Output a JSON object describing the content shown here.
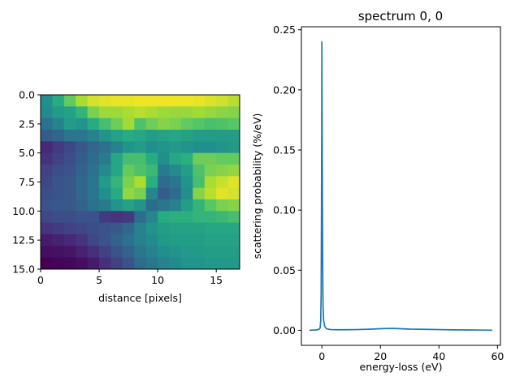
{
  "chart_data": [
    {
      "type": "heatmap",
      "title": "",
      "xlabel": "distance [pixels]",
      "ylabel": "",
      "colormap": "viridis",
      "xlim": [
        0,
        17
      ],
      "ylim": [
        15,
        0
      ],
      "x_ticks": [
        0,
        5,
        10,
        15
      ],
      "x_tick_labels": [
        "0",
        "5",
        "10",
        "15"
      ],
      "y_ticks": [
        0.0,
        2.5,
        5.0,
        7.5,
        10.0,
        12.5,
        15.0
      ],
      "y_tick_labels": [
        "0.0",
        "2.5",
        "5.0",
        "7.5",
        "10.0",
        "12.5",
        "15.0"
      ],
      "value_range": [
        0,
        1
      ],
      "values": [
        [
          0.5,
          0.62,
          0.76,
          0.88,
          0.94,
          0.96,
          0.97,
          0.97,
          0.98,
          0.98,
          0.98,
          0.98,
          0.98,
          0.97,
          0.95,
          0.93,
          0.9
        ],
        [
          0.48,
          0.55,
          0.58,
          0.66,
          0.8,
          0.86,
          0.86,
          0.88,
          0.9,
          0.88,
          0.86,
          0.85,
          0.85,
          0.87,
          0.85,
          0.83,
          0.82
        ],
        [
          0.38,
          0.45,
          0.55,
          0.52,
          0.62,
          0.7,
          0.78,
          0.87,
          0.72,
          0.78,
          0.82,
          0.8,
          0.76,
          0.73,
          0.71,
          0.72,
          0.74
        ],
        [
          0.3,
          0.33,
          0.4,
          0.4,
          0.45,
          0.52,
          0.58,
          0.62,
          0.6,
          0.56,
          0.58,
          0.6,
          0.58,
          0.55,
          0.55,
          0.55,
          0.56
        ],
        [
          0.12,
          0.18,
          0.22,
          0.28,
          0.34,
          0.38,
          0.45,
          0.52,
          0.55,
          0.5,
          0.52,
          0.54,
          0.52,
          0.5,
          0.5,
          0.52,
          0.54
        ],
        [
          0.15,
          0.2,
          0.24,
          0.3,
          0.36,
          0.42,
          0.6,
          0.7,
          0.7,
          0.62,
          0.5,
          0.6,
          0.64,
          0.78,
          0.78,
          0.76,
          0.76
        ],
        [
          0.2,
          0.24,
          0.26,
          0.32,
          0.38,
          0.48,
          0.6,
          0.76,
          0.72,
          0.68,
          0.42,
          0.48,
          0.56,
          0.72,
          0.8,
          0.82,
          0.84
        ],
        [
          0.22,
          0.26,
          0.28,
          0.34,
          0.4,
          0.55,
          0.66,
          0.8,
          0.88,
          0.64,
          0.36,
          0.4,
          0.52,
          0.7,
          0.88,
          0.92,
          0.96
        ],
        [
          0.24,
          0.26,
          0.28,
          0.34,
          0.4,
          0.5,
          0.62,
          0.84,
          0.8,
          0.46,
          0.3,
          0.36,
          0.5,
          0.82,
          0.9,
          0.96,
          0.94
        ],
        [
          0.26,
          0.28,
          0.28,
          0.32,
          0.38,
          0.42,
          0.52,
          0.58,
          0.52,
          0.36,
          0.4,
          0.44,
          0.56,
          0.66,
          0.74,
          0.8,
          0.82
        ],
        [
          0.22,
          0.24,
          0.24,
          0.26,
          0.26,
          0.18,
          0.16,
          0.18,
          0.36,
          0.46,
          0.62,
          0.64,
          0.64,
          0.66,
          0.66,
          0.68,
          0.7
        ],
        [
          0.16,
          0.18,
          0.2,
          0.22,
          0.24,
          0.26,
          0.28,
          0.34,
          0.44,
          0.52,
          0.56,
          0.58,
          0.58,
          0.58,
          0.6,
          0.6,
          0.6
        ],
        [
          0.08,
          0.1,
          0.12,
          0.16,
          0.22,
          0.26,
          0.32,
          0.38,
          0.44,
          0.48,
          0.54,
          0.56,
          0.56,
          0.56,
          0.58,
          0.58,
          0.58
        ],
        [
          0.04,
          0.05,
          0.06,
          0.1,
          0.14,
          0.2,
          0.26,
          0.32,
          0.4,
          0.44,
          0.5,
          0.52,
          0.54,
          0.54,
          0.56,
          0.56,
          0.56
        ],
        [
          0.0,
          0.01,
          0.02,
          0.04,
          0.08,
          0.14,
          0.2,
          0.26,
          0.36,
          0.4,
          0.44,
          0.48,
          0.52,
          0.52,
          0.54,
          0.54,
          0.54
        ]
      ]
    },
    {
      "type": "line",
      "title": "spectrum 0, 0",
      "xlabel": "energy-loss (eV)",
      "ylabel": "scattering probability (%/eV)",
      "xlim": [
        -7,
        61
      ],
      "ylim": [
        -0.0125,
        0.2525
      ],
      "x_ticks": [
        0,
        20,
        40,
        60
      ],
      "x_tick_labels": [
        "0",
        "20",
        "40",
        "60"
      ],
      "y_ticks": [
        0.0,
        0.05,
        0.1,
        0.15,
        0.2,
        0.25
      ],
      "y_tick_labels": [
        "0.00",
        "0.05",
        "0.10",
        "0.15",
        "0.20",
        "0.25"
      ],
      "line_color": "#1f77b4",
      "series": [
        {
          "name": "spectrum 0, 0",
          "x": [
            -4,
            -2,
            -1,
            -0.6,
            -0.4,
            -0.25,
            -0.15,
            -0.05,
            0,
            0.05,
            0.15,
            0.25,
            0.4,
            0.6,
            1,
            1.5,
            2,
            3,
            5,
            8,
            12,
            16,
            20,
            22,
            24,
            26,
            30,
            35,
            40,
            45,
            50,
            55,
            58
          ],
          "y": [
            0.0001,
            0.0003,
            0.0008,
            0.002,
            0.008,
            0.03,
            0.09,
            0.18,
            0.24,
            0.2,
            0.13,
            0.06,
            0.02,
            0.008,
            0.003,
            0.0015,
            0.001,
            0.0006,
            0.0005,
            0.0005,
            0.0006,
            0.0009,
            0.0013,
            0.0015,
            0.0016,
            0.0014,
            0.001,
            0.0008,
            0.0006,
            0.0004,
            0.0003,
            0.0002,
            0.0001
          ]
        }
      ]
    }
  ]
}
